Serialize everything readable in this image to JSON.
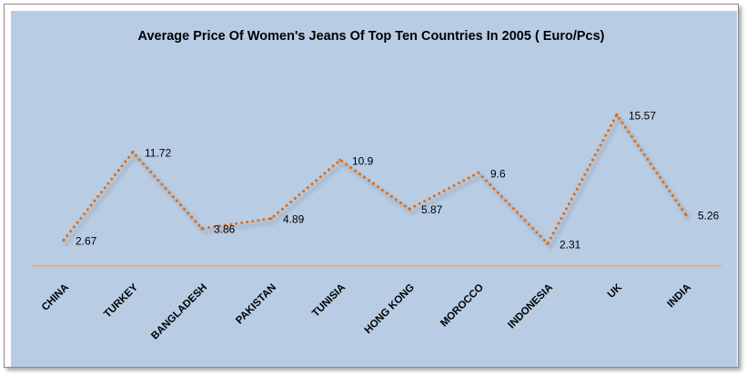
{
  "colors": {
    "plot_background": "#b8cce4",
    "line": "#e46c0a",
    "baseline": "#f79646",
    "text": "#000000"
  },
  "chart_data": {
    "type": "line",
    "title": "Average Price Of Women's Jeans Of Top Ten Countries In 2005 ( Euro/Pcs)",
    "xlabel": "",
    "ylabel": "",
    "categories": [
      "CHINA",
      "TURKEY",
      "BANGLADESH",
      "PAKISTAN",
      "TUNISIA",
      "HONG KONG",
      "MOROCCO",
      "INDONESIA",
      "UK",
      "INDIA"
    ],
    "series": [
      {
        "values": [
          2.67,
          11.72,
          3.86,
          4.89,
          10.9,
          5.87,
          9.6,
          2.31,
          15.57,
          5.26
        ],
        "data_labels": [
          "2.67",
          "11.72",
          "3.86",
          "4.89",
          "10.9",
          "5.87",
          "9.6",
          "2.31",
          "15.57",
          "5.26"
        ],
        "line_style": "dotted",
        "line_shadow": true
      }
    ],
    "ylim": [
      0,
      21
    ],
    "y_axis_visible": false,
    "grid": false,
    "legend": "none",
    "x_tick_label_rotation": "diagonal"
  }
}
